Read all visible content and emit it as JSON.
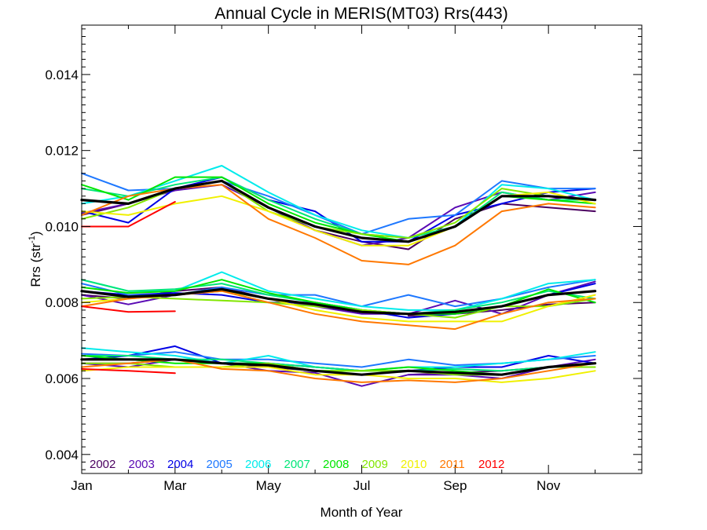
{
  "chart_data": {
    "type": "line",
    "title": "Annual Cycle in MERIS(MT03) Rrs(443)",
    "xlabel": "Month of Year",
    "ylabel_main": "Rrs (str",
    "ylabel_sup": "-1",
    "ylabel_tail": ")",
    "xlim": [
      1,
      13
    ],
    "ylim": [
      0.0035,
      0.0153
    ],
    "x_ticks": [
      {
        "value": 1,
        "label": "Jan"
      },
      {
        "value": 3,
        "label": "Mar"
      },
      {
        "value": 5,
        "label": "May"
      },
      {
        "value": 7,
        "label": "Jul"
      },
      {
        "value": 9,
        "label": "Sep"
      },
      {
        "value": 11,
        "label": "Nov"
      }
    ],
    "x_minor_ticks": [
      2,
      4,
      6,
      8,
      10,
      12
    ],
    "y_ticks": [
      {
        "value": 0.004,
        "label": "0.004"
      },
      {
        "value": 0.006,
        "label": "0.006"
      },
      {
        "value": 0.008,
        "label": "0.008"
      },
      {
        "value": 0.01,
        "label": "0.010"
      },
      {
        "value": 0.012,
        "label": "0.012"
      },
      {
        "value": 0.014,
        "label": "0.014"
      }
    ],
    "y_minor_ticks": [
      0.0036,
      0.0038,
      0.0042,
      0.0044,
      0.0046,
      0.0048,
      0.005,
      0.0052,
      0.0054,
      0.0056,
      0.0058,
      0.0062,
      0.0064,
      0.0066,
      0.0068,
      0.007,
      0.0072,
      0.0074,
      0.0076,
      0.0078,
      0.0082,
      0.0084,
      0.0086,
      0.0088,
      0.009,
      0.0092,
      0.0094,
      0.0096,
      0.0098,
      0.0102,
      0.0104,
      0.0106,
      0.0108,
      0.011,
      0.0112,
      0.0114,
      0.0116,
      0.0118,
      0.0122,
      0.0124,
      0.0126,
      0.0128,
      0.013,
      0.0132,
      0.0134,
      0.0136,
      0.0138,
      0.0142,
      0.0144,
      0.0146,
      0.0148,
      0.015,
      0.0152
    ],
    "legend_position": "bottom-left, inside plot",
    "x": [
      1,
      2,
      3,
      4,
      5,
      6,
      7,
      8,
      9,
      10,
      11,
      12
    ],
    "series": [
      {
        "name": "2002",
        "color": "#4b0060",
        "groups": [
          [
            0.0103,
            0.0106,
            0.011,
            0.0112,
            0.0105,
            0.0099,
            0.0096,
            0.0094,
            0.0102,
            0.0106,
            0.0105,
            0.0104
          ],
          [
            0.0082,
            0.0081,
            0.0083,
            0.0084,
            0.0081,
            0.0079,
            null,
            0.00765,
            0.0077,
            0.0078,
            0.00795,
            0.008
          ],
          [
            0.0064,
            0.0064,
            0.0065,
            0.0064,
            0.0063,
            0.0062,
            null,
            0.0061,
            0.00615,
            0.0062,
            0.0063,
            0.0064
          ]
        ]
      },
      {
        "name": "2003",
        "color": "#5a0ab4",
        "groups": [
          [
            0.01035,
            0.0106,
            0.01095,
            0.0111,
            0.0105,
            0.0099,
            0.0095,
            0.0097,
            0.0105,
            0.0109,
            0.0107,
            0.0109
          ],
          [
            0.0082,
            0.00795,
            0.0082,
            0.0083,
            0.0081,
            0.0079,
            0.0077,
            0.0077,
            0.00805,
            0.0077,
            0.0082,
            0.00855
          ],
          [
            0.0064,
            0.0063,
            0.0065,
            0.0064,
            0.0062,
            0.00615,
            0.0058,
            0.0061,
            0.0061,
            0.006,
            0.0063,
            0.0065
          ]
        ]
      },
      {
        "name": "2004",
        "color": "#0000e6",
        "groups": [
          [
            0.0104,
            0.0101,
            0.011,
            0.0113,
            0.0107,
            0.0104,
            0.0096,
            0.0096,
            0.0103,
            0.0106,
            0.0109,
            0.011
          ],
          [
            0.0083,
            0.0082,
            0.00825,
            0.0082,
            0.008,
            0.008,
            0.0078,
            0.0076,
            0.0077,
            0.0079,
            0.0082,
            0.0085
          ],
          [
            0.0065,
            0.0066,
            0.00685,
            0.0064,
            0.0064,
            0.0063,
            0.0062,
            0.0062,
            0.0063,
            0.0063,
            0.0066,
            0.0064
          ]
        ]
      },
      {
        "name": "2005",
        "color": "#1e78ff",
        "groups": [
          [
            0.0114,
            0.01095,
            0.011,
            0.0112,
            0.0108,
            0.0103,
            0.0098,
            0.0102,
            0.0103,
            0.0112,
            0.011,
            0.011
          ],
          [
            0.0085,
            0.0082,
            0.0082,
            0.0084,
            0.0082,
            0.0082,
            0.0079,
            0.0082,
            0.0079,
            0.0081,
            0.0084,
            0.0086
          ],
          [
            0.00665,
            0.0066,
            0.0067,
            0.0065,
            0.0065,
            0.0064,
            0.0063,
            0.0065,
            0.00635,
            0.0064,
            0.0065,
            0.0066
          ]
        ]
      },
      {
        "name": "2006",
        "color": "#00ebeb",
        "groups": [
          [
            0.0106,
            0.0108,
            0.0112,
            0.0116,
            0.0109,
            0.0103,
            0.0099,
            0.0097,
            0.01,
            0.0111,
            0.011,
            0.0107
          ],
          [
            0.0086,
            0.0083,
            0.0083,
            0.0088,
            0.0083,
            0.0081,
            0.0079,
            0.0078,
            0.0078,
            0.0081,
            0.0085,
            0.0086
          ],
          [
            0.0068,
            0.0067,
            0.0066,
            0.0064,
            0.0066,
            0.0063,
            0.0062,
            0.0063,
            0.0063,
            0.0064,
            0.0065,
            0.0067
          ]
        ]
      },
      {
        "name": "2007",
        "color": "#00e678",
        "groups": [
          [
            0.011,
            0.0108,
            0.0111,
            0.0113,
            0.0107,
            0.0102,
            0.0098,
            0.0097,
            0.01,
            0.0109,
            0.0107,
            0.0107
          ],
          [
            0.0086,
            0.0083,
            0.00835,
            0.0085,
            0.0082,
            0.008,
            0.0078,
            0.0077,
            0.0078,
            0.008,
            0.0083,
            0.0081
          ],
          [
            0.0066,
            0.0066,
            0.0065,
            0.0065,
            0.0064,
            0.0063,
            0.0062,
            0.0062,
            0.00625,
            0.0062,
            0.0063,
            0.0064
          ]
        ]
      },
      {
        "name": "2008",
        "color": "#00e600",
        "groups": [
          [
            0.0111,
            0.0107,
            0.0113,
            0.0113,
            0.0106,
            0.0101,
            0.0098,
            0.0096,
            0.01,
            0.0108,
            0.0107,
            0.0106
          ],
          [
            0.0084,
            0.00825,
            0.0083,
            0.0086,
            0.00825,
            0.008,
            0.0078,
            0.0077,
            0.0077,
            0.0079,
            0.00835,
            0.008
          ],
          [
            0.0066,
            0.0065,
            0.0064,
            0.0064,
            0.0064,
            0.0062,
            0.0062,
            0.0063,
            0.0062,
            0.0061,
            0.0063,
            0.0064
          ]
        ]
      },
      {
        "name": "2009",
        "color": "#82e600",
        "groups": [
          [
            0.0102,
            0.0105,
            0.011,
            0.0112,
            0.0104,
            0.01,
            0.0098,
            0.0097,
            0.0101,
            0.011,
            0.0108,
            0.0107
          ],
          [
            0.0081,
            0.00815,
            0.0081,
            0.00805,
            0.008,
            0.0079,
            0.0078,
            0.0077,
            0.0076,
            0.0079,
            0.0079,
            0.0081
          ],
          [
            0.0064,
            0.0064,
            0.0063,
            0.0063,
            0.0064,
            0.0062,
            0.0062,
            0.0062,
            0.0061,
            0.0061,
            0.0063,
            0.0063
          ]
        ]
      },
      {
        "name": "2010",
        "color": "#f0f000",
        "groups": [
          [
            0.0104,
            0.0103,
            0.0106,
            0.0108,
            0.0104,
            0.0099,
            0.0095,
            0.0095,
            0.01,
            0.0108,
            0.0109,
            0.0106
          ],
          [
            0.008,
            0.0081,
            0.0082,
            0.0083,
            0.0081,
            0.0078,
            0.0076,
            0.0075,
            0.0075,
            0.0075,
            0.0079,
            0.0082
          ],
          [
            0.0062,
            0.0063,
            0.0063,
            0.0063,
            0.0063,
            0.0061,
            0.0061,
            0.006,
            0.006,
            0.0059,
            0.006,
            0.0062
          ]
        ]
      },
      {
        "name": "2011",
        "color": "#ff7800",
        "groups": [
          [
            0.0103,
            0.0108,
            0.011,
            0.0111,
            0.0102,
            0.0097,
            0.0091,
            0.009,
            0.0095,
            0.0104,
            0.0106,
            0.0105
          ],
          [
            0.0079,
            0.0081,
            0.0082,
            0.0083,
            0.008,
            0.0077,
            0.0075,
            0.0074,
            0.0073,
            0.0077,
            0.008,
            0.0081
          ],
          [
            0.0063,
            0.0064,
            0.0065,
            0.00625,
            0.0062,
            0.006,
            0.0059,
            0.00595,
            0.0059,
            0.006,
            0.0062,
            0.0064
          ]
        ]
      },
      {
        "name": "2012",
        "color": "#ff0000",
        "groups": [
          [
            0.01,
            0.01,
            0.01065
          ],
          [
            0.0079,
            0.00775,
            0.00777
          ],
          [
            0.00625,
            0.0062,
            0.00614
          ]
        ]
      }
    ],
    "mean": {
      "color": "#000000",
      "groups": [
        [
          0.0107,
          0.0106,
          0.011,
          0.0112,
          0.0105,
          0.01,
          0.0097,
          0.0096,
          0.01,
          0.0108,
          0.0108,
          0.0107
        ],
        [
          0.0083,
          0.00815,
          0.0082,
          0.00835,
          0.0081,
          0.00795,
          0.00775,
          0.0077,
          0.00775,
          0.0079,
          0.0082,
          0.0083
        ],
        [
          0.0065,
          0.0065,
          0.0065,
          0.0064,
          0.00635,
          0.0062,
          0.0061,
          0.0062,
          0.00615,
          0.0061,
          0.0063,
          0.0064
        ]
      ]
    }
  }
}
